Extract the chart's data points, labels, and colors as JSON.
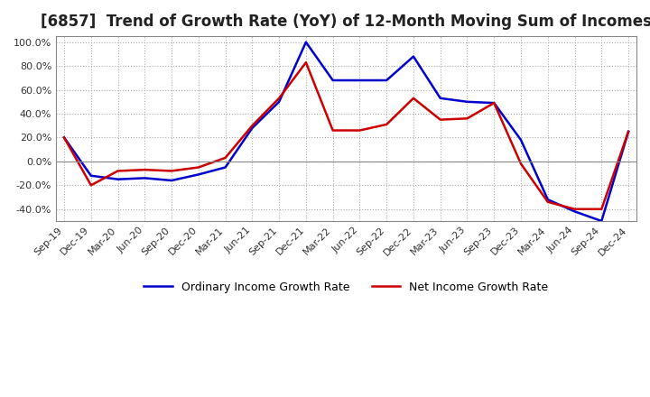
{
  "title": "[6857]  Trend of Growth Rate (YoY) of 12-Month Moving Sum of Incomes",
  "title_fontsize": 12,
  "ylim": [
    -50,
    105
  ],
  "yticks": [
    -40,
    -20,
    0,
    20,
    40,
    60,
    80,
    100
  ],
  "background_color": "#ffffff",
  "ordinary_color": "#0000cc",
  "net_color": "#cc0000",
  "legend_labels": [
    "Ordinary Income Growth Rate",
    "Net Income Growth Rate"
  ],
  "x_labels": [
    "Sep-19",
    "Dec-19",
    "Mar-20",
    "Jun-20",
    "Sep-20",
    "Dec-20",
    "Mar-21",
    "Jun-21",
    "Sep-21",
    "Dec-21",
    "Mar-22",
    "Jun-22",
    "Sep-22",
    "Dec-22",
    "Mar-23",
    "Jun-23",
    "Sep-23",
    "Dec-23",
    "Mar-24",
    "Jun-24",
    "Sep-24",
    "Dec-24"
  ],
  "ordinary_income_growth": [
    20,
    -12,
    -15,
    -14,
    -16,
    -11,
    -5,
    28,
    50,
    100,
    68,
    68,
    68,
    88,
    53,
    50,
    49,
    18,
    -32,
    -42,
    -50,
    25
  ],
  "net_income_growth": [
    20,
    -20,
    -8,
    -7,
    -8,
    -5,
    3,
    30,
    53,
    83,
    26,
    26,
    31,
    53,
    35,
    36,
    49,
    -2,
    -34,
    -40,
    -40,
    25
  ]
}
